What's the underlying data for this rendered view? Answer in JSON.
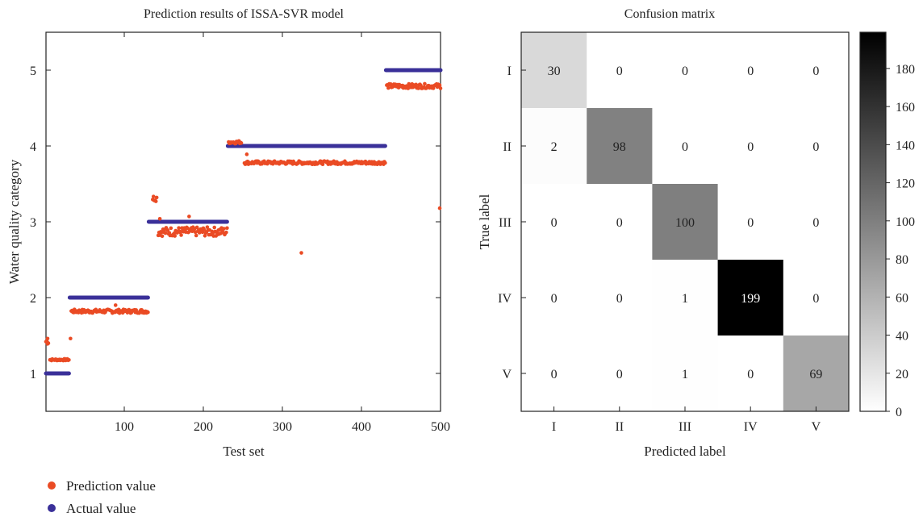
{
  "chart_data": [
    {
      "type": "scatter",
      "title": "Prediction results of ISSA-SVR model",
      "xlabel": "Test set",
      "ylabel": "Water quality category",
      "xlim": [
        1,
        500
      ],
      "ylim": [
        0.5,
        5.5
      ],
      "xticks": [
        100,
        200,
        300,
        400,
        500
      ],
      "yticks": [
        1,
        2,
        3,
        4,
        5
      ],
      "grid": false,
      "legend_position": "bottom-left",
      "series": [
        {
          "name": "Actual value",
          "color": "#3a3099",
          "segments": [
            {
              "x": [
                1,
                30
              ],
              "y": 1
            },
            {
              "x": [
                31,
                130
              ],
              "y": 2
            },
            {
              "x": [
                131,
                230
              ],
              "y": 3
            },
            {
              "x": [
                231,
                430
              ],
              "y": 4
            },
            {
              "x": [
                431,
                500
              ],
              "y": 5
            }
          ]
        },
        {
          "name": "Prediction value",
          "color": "#ea4b24",
          "segments": [
            {
              "x": [
                1,
                4
              ],
              "y": 1.42,
              "spread": 0.04
            },
            {
              "x": [
                6,
                30
              ],
              "y": 1.18,
              "spread": 0.012
            },
            {
              "x": [
                33,
                130
              ],
              "y": 1.82,
              "spread": 0.025
            },
            {
              "x": [
                136,
                141
              ],
              "y": 3.31,
              "spread": 0.04
            },
            {
              "x": [
                143,
                230
              ],
              "y": 2.87,
              "spread": 0.06
            },
            {
              "x": [
                232,
                248
              ],
              "y": 4.05,
              "spread": 0.02
            },
            {
              "x": [
                252,
                430
              ],
              "y": 3.78,
              "spread": 0.022
            },
            {
              "x": [
                432,
                500
              ],
              "y": 4.79,
              "spread": 0.03
            }
          ],
          "outliers": [
            {
              "x": 3,
              "y": 1.46
            },
            {
              "x": 32,
              "y": 1.46
            },
            {
              "x": 89,
              "y": 1.9
            },
            {
              "x": 145,
              "y": 3.04
            },
            {
              "x": 182,
              "y": 3.07
            },
            {
              "x": 255,
              "y": 3.89
            },
            {
              "x": 324,
              "y": 2.59
            },
            {
              "x": 499,
              "y": 3.18
            }
          ]
        }
      ],
      "legend": [
        "Prediction value",
        "Actual value"
      ]
    },
    {
      "type": "heatmap",
      "title": "Confusion matrix",
      "xlabel": "Predicted label",
      "ylabel": "True label",
      "x_categories": [
        "I",
        "II",
        "III",
        "IV",
        "V"
      ],
      "y_categories": [
        "I",
        "II",
        "III",
        "IV",
        "V"
      ],
      "values": [
        [
          30,
          0,
          0,
          0,
          0
        ],
        [
          2,
          98,
          0,
          0,
          0
        ],
        [
          0,
          0,
          100,
          0,
          0
        ],
        [
          0,
          0,
          1,
          199,
          0
        ],
        [
          0,
          0,
          1,
          0,
          69
        ]
      ],
      "colorscale": "white-to-black",
      "vmin": 0,
      "vmax": 199,
      "colorbar_ticks": [
        0,
        20,
        40,
        60,
        80,
        100,
        120,
        140,
        160,
        180
      ]
    }
  ]
}
